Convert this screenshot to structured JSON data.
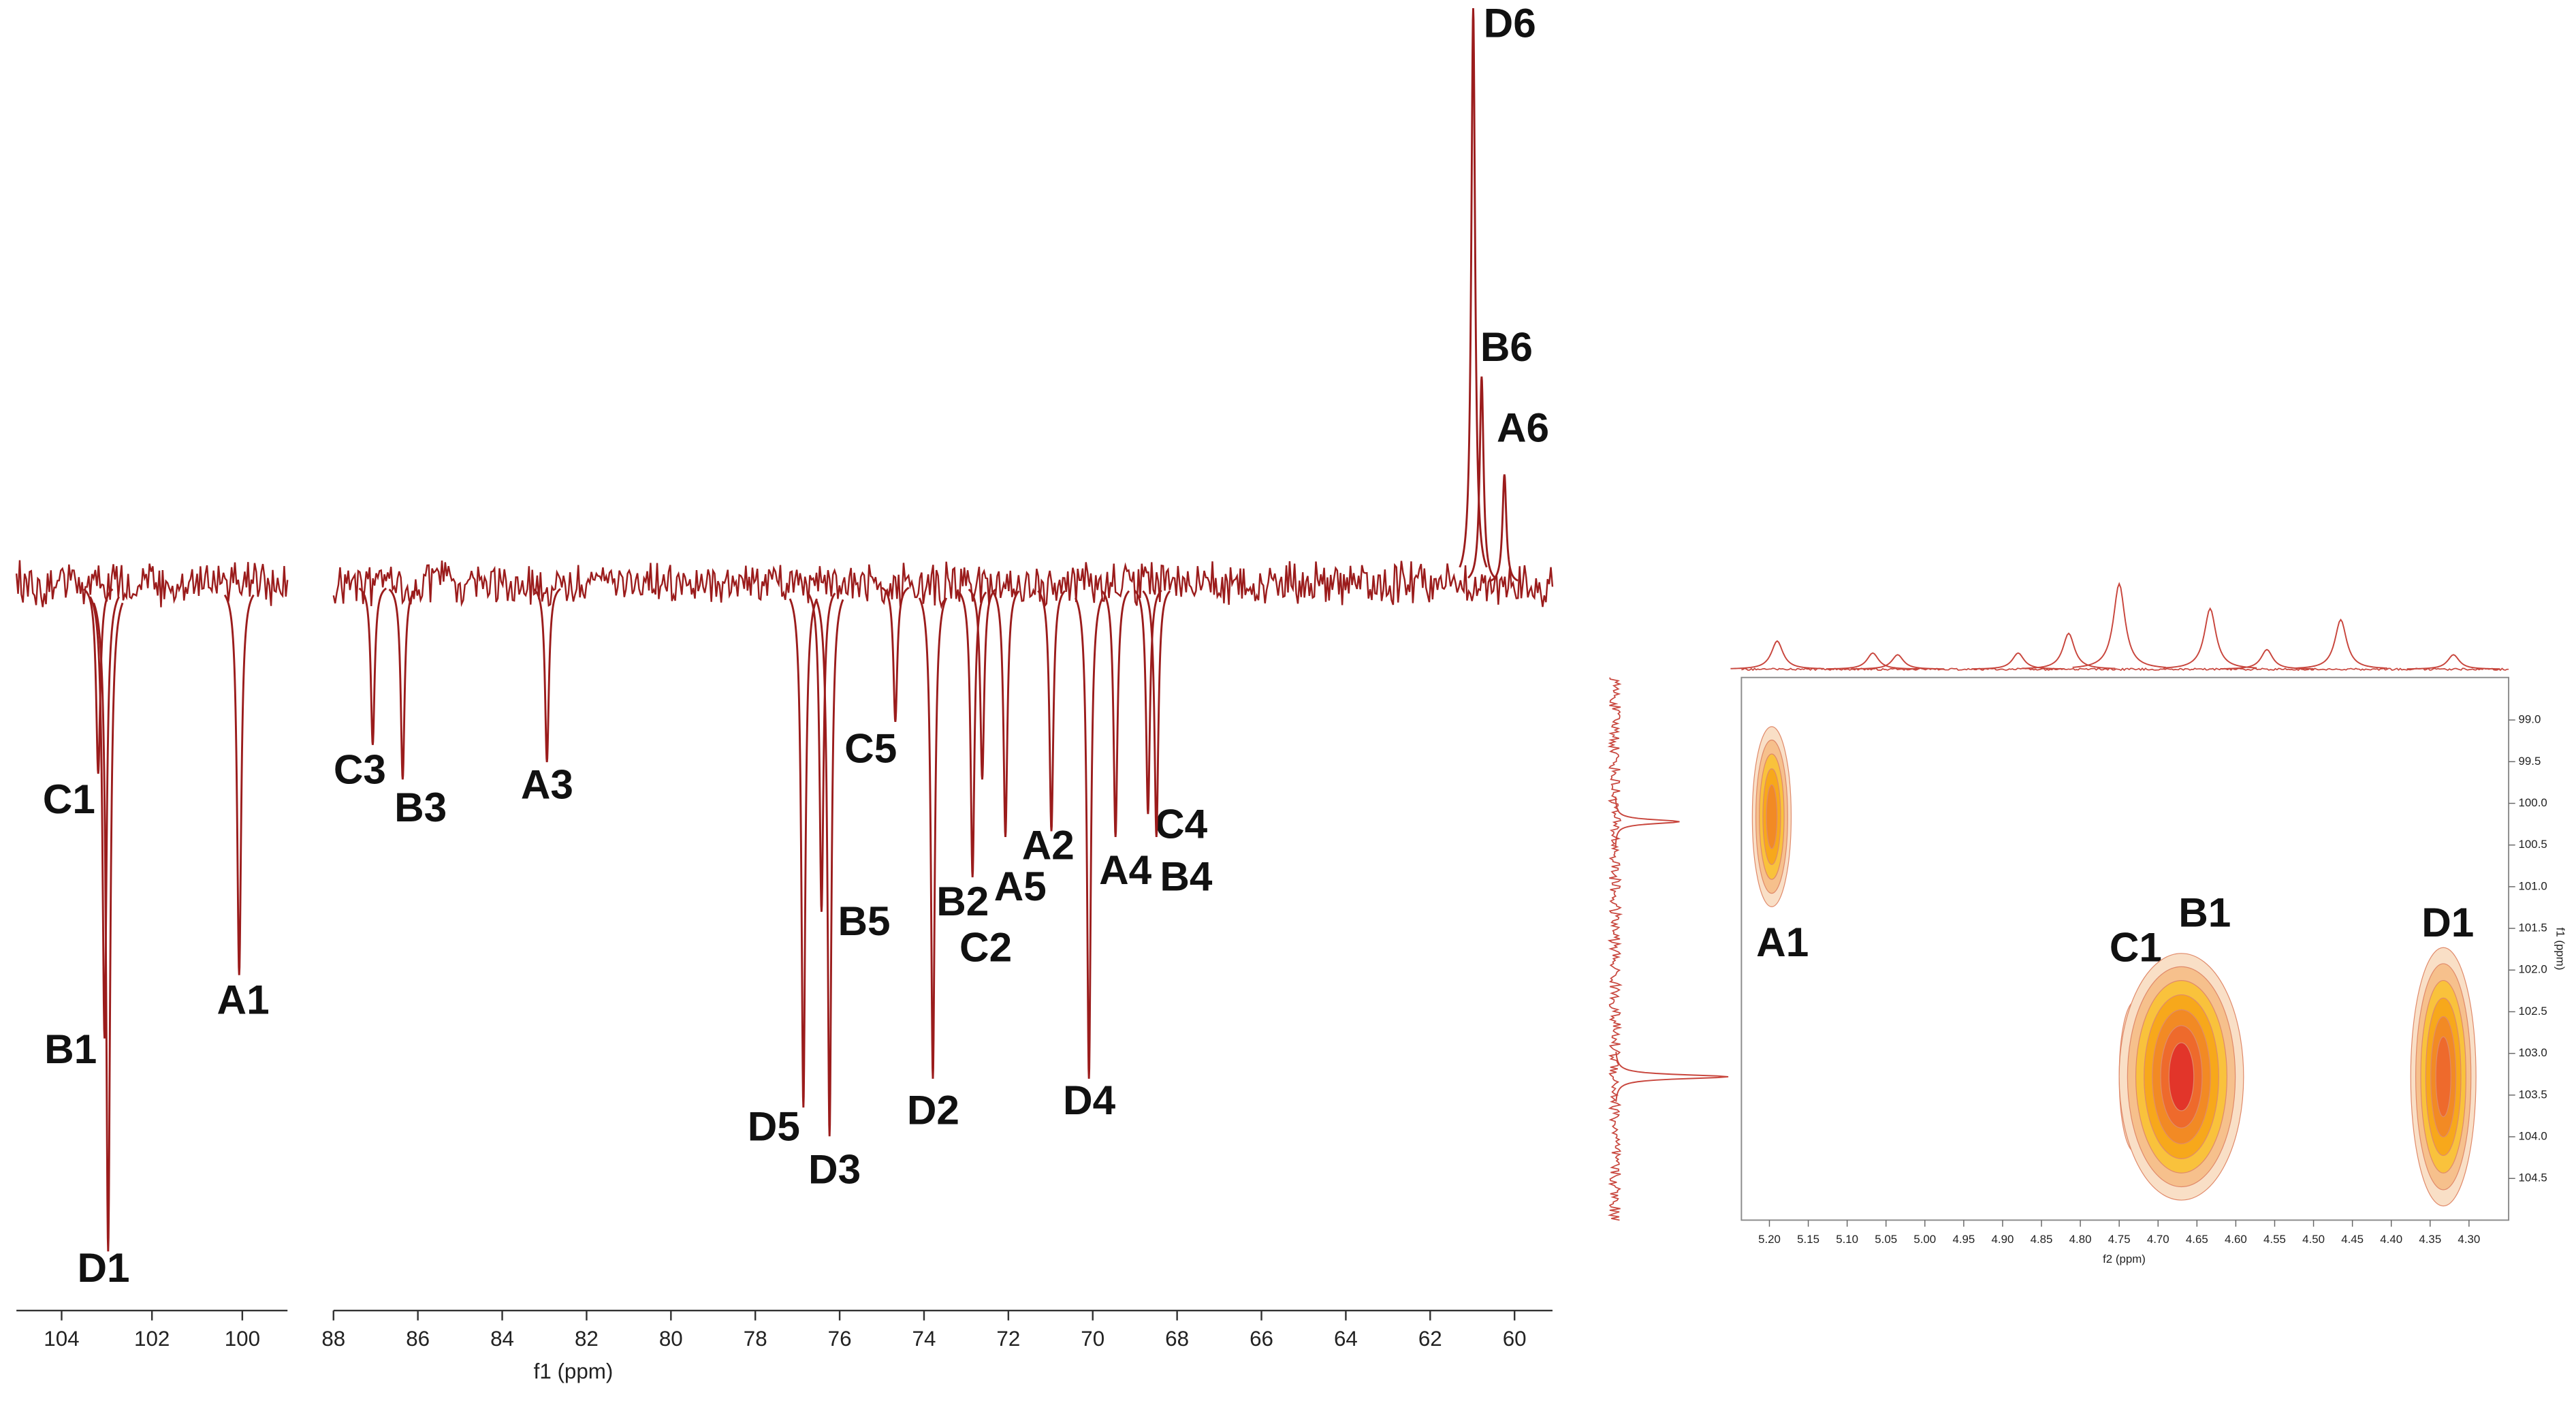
{
  "chart_data": [
    {
      "type": "spectrum",
      "x_label": "f1 (ppm)",
      "color": "#9b1c1c",
      "ylim": [
        -1.2,
        1.0
      ],
      "panels": [
        {
          "xlim": [
            105,
            99
          ],
          "xticks": [
            104,
            102,
            100
          ]
        },
        {
          "xlim": [
            88,
            59.1
          ],
          "xticks": [
            88,
            86,
            84,
            82,
            80,
            78,
            76,
            74,
            72,
            70,
            68,
            66,
            64,
            62,
            60
          ]
        }
      ],
      "peaks": [
        {
          "label": "C1",
          "ppm": 103.19,
          "intensity": -0.33
        },
        {
          "label": "B1",
          "ppm": 103.05,
          "intensity": -0.79
        },
        {
          "label": "D1",
          "ppm": 102.97,
          "intensity": -1.16
        },
        {
          "label": "A1",
          "ppm": 100.07,
          "intensity": -0.68
        },
        {
          "label": "C3",
          "ppm": 87.07,
          "intensity": -0.28
        },
        {
          "label": "B3",
          "ppm": 86.36,
          "intensity": -0.34
        },
        {
          "label": "A3",
          "ppm": 82.94,
          "intensity": -0.31
        },
        {
          "label": "D5",
          "ppm": 76.86,
          "intensity": -0.91
        },
        {
          "label": "B5",
          "ppm": 76.43,
          "intensity": -0.57
        },
        {
          "label": "D3",
          "ppm": 76.24,
          "intensity": -0.96
        },
        {
          "label": "C5",
          "ppm": 74.68,
          "intensity": -0.24
        },
        {
          "label": "D2",
          "ppm": 73.79,
          "intensity": -0.86
        },
        {
          "label": "B2",
          "ppm": 72.85,
          "intensity": -0.51
        },
        {
          "label": "C2",
          "ppm": 72.62,
          "intensity": -0.34
        },
        {
          "label": "A5",
          "ppm": 72.07,
          "intensity": -0.44
        },
        {
          "label": "A2",
          "ppm": 70.98,
          "intensity": -0.43
        },
        {
          "label": "D4",
          "ppm": 70.09,
          "intensity": -0.86
        },
        {
          "label": "A4",
          "ppm": 69.46,
          "intensity": -0.44
        },
        {
          "label": "C4",
          "ppm": 68.69,
          "intensity": -0.4
        },
        {
          "label": "B4",
          "ppm": 68.49,
          "intensity": -0.44
        },
        {
          "label": "D6",
          "ppm": 60.98,
          "intensity": 1.0
        },
        {
          "label": "B6",
          "ppm": 60.78,
          "intensity": 0.36
        },
        {
          "label": "A6",
          "ppm": 60.24,
          "intensity": 0.19
        }
      ]
    },
    {
      "type": "hsqc",
      "x_label": "f2 (ppm)",
      "y_label": "f1 (ppm)",
      "color": "#c8453c",
      "xlim": [
        5.236,
        4.249
      ],
      "ylim": [
        98.49,
        105.0
      ],
      "xticks": [
        {
          "value": 5.2,
          "label": "5.20"
        },
        5.15,
        {
          "value": 5.1,
          "label": "5.10"
        },
        5.05,
        {
          "value": 5.0,
          "label": "5.00"
        },
        4.95,
        {
          "value": 4.9,
          "label": "4.90"
        },
        4.85,
        {
          "value": 4.8,
          "label": "4.80"
        },
        4.75,
        {
          "value": 4.7,
          "label": "4.70"
        },
        4.65,
        {
          "value": 4.6,
          "label": "4.60"
        },
        4.55,
        {
          "value": 4.5,
          "label": "4.50"
        },
        4.45,
        {
          "value": 4.4,
          "label": "4.40"
        },
        4.35,
        {
          "value": 4.3,
          "label": "4.30"
        }
      ],
      "yticks": [
        {
          "value": 99,
          "label": "99.0"
        },
        99.5,
        {
          "value": 100,
          "label": "100.0"
        },
        100.5,
        {
          "value": 101,
          "label": "101.0"
        },
        101.5,
        {
          "value": 102,
          "label": "102.0"
        },
        102.5,
        {
          "value": 103,
          "label": "103.0"
        },
        103.5,
        {
          "value": 104,
          "label": "104.0"
        },
        104.5
      ],
      "contour_colors": [
        "#f9dfc6",
        "#f6c08c",
        "#f9c23c",
        "#f7a81b",
        "#f28a24",
        "#ee6a2c",
        "#e2352a"
      ],
      "cross_peaks": [
        {
          "label": "A1",
          "x": 5.197,
          "y": 100.16,
          "x_width": 0.025,
          "y_width": 1.08,
          "intensity": 0.6
        },
        {
          "label": "C1",
          "x": 4.73,
          "y": 103.28,
          "x_width": 0.02,
          "y_width": 0.9,
          "intensity": 0.4
        },
        {
          "label": "B1",
          "x": 4.67,
          "y": 103.28,
          "x_width": 0.08,
          "y_width": 1.48,
          "intensity": 1.0
        },
        {
          "label": "D1",
          "x": 4.333,
          "y": 103.28,
          "x_width": 0.042,
          "y_width": 1.55,
          "intensity": 0.85
        }
      ],
      "projection_f2": [
        {
          "ppm": 5.19,
          "intensity": 0.33
        },
        {
          "ppm": 5.067,
          "intensity": 0.19
        },
        {
          "ppm": 5.035,
          "intensity": 0.17
        },
        {
          "ppm": 4.88,
          "intensity": 0.19
        },
        {
          "ppm": 4.815,
          "intensity": 0.42
        },
        {
          "ppm": 4.75,
          "intensity": 1.0
        },
        {
          "ppm": 4.633,
          "intensity": 0.71
        },
        {
          "ppm": 4.56,
          "intensity": 0.23
        },
        {
          "ppm": 4.465,
          "intensity": 0.58
        },
        {
          "ppm": 4.32,
          "intensity": 0.17
        }
      ],
      "projection_f1": [
        {
          "ppm": 100.22,
          "intensity": 0.57
        },
        {
          "ppm": 103.28,
          "intensity": 1.0
        }
      ]
    }
  ]
}
